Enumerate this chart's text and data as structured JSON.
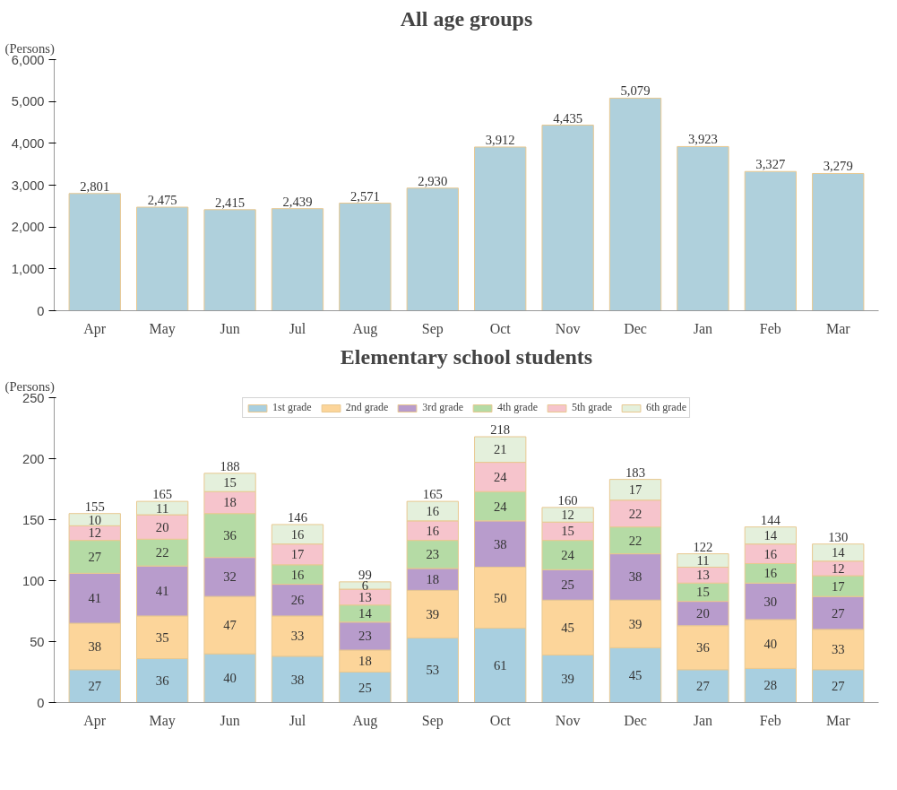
{
  "chart_data": [
    {
      "type": "bar",
      "title": "All age groups",
      "ylabel": "(Persons)",
      "categories": [
        "Apr",
        "May",
        "Jun",
        "Jul",
        "Aug",
        "Sep",
        "Oct",
        "Nov",
        "Dec",
        "Jan",
        "Feb",
        "Mar"
      ],
      "values": [
        2801,
        2475,
        2415,
        2439,
        2571,
        2930,
        3912,
        4435,
        5079,
        3923,
        3327,
        3279
      ],
      "color": "#afd0dc",
      "ylim": [
        0,
        6000
      ],
      "yticks": [
        {
          "value": 0,
          "label": "0"
        },
        {
          "value": 1000,
          "label": "1,000"
        },
        {
          "value": 2000,
          "label": "2,000"
        },
        {
          "value": 3000,
          "label": "3,000"
        },
        {
          "value": 4000,
          "label": "4,000"
        },
        {
          "value": 5000,
          "label": "5,000"
        },
        {
          "value": 6000,
          "label": "6,000"
        }
      ],
      "value_labels": [
        "2,801",
        "2,475",
        "2,415",
        "2,439",
        "2,571",
        "2,930",
        "3,912",
        "4,435",
        "5,079",
        "3,923",
        "3,327",
        "3,279"
      ],
      "grid": false,
      "legend": false
    },
    {
      "type": "bar",
      "title": "Elementary school students",
      "ylabel": "(Persons)",
      "categories": [
        "Apr",
        "May",
        "Jun",
        "Jul",
        "Aug",
        "Sep",
        "Oct",
        "Nov",
        "Dec",
        "Jan",
        "Feb",
        "Mar"
      ],
      "stacked": true,
      "series": [
        {
          "name": "1st grade",
          "color": "#a8cfe0",
          "values": [
            27,
            36,
            40,
            38,
            25,
            53,
            61,
            39,
            45,
            27,
            28,
            27
          ]
        },
        {
          "name": "2nd grade",
          "color": "#fcd59a",
          "values": [
            38,
            35,
            47,
            33,
            18,
            39,
            50,
            45,
            39,
            36,
            40,
            33
          ]
        },
        {
          "name": "3rd grade",
          "color": "#b89ccc",
          "values": [
            41,
            41,
            32,
            26,
            23,
            18,
            38,
            25,
            38,
            20,
            30,
            27
          ]
        },
        {
          "name": "4th grade",
          "color": "#b5dba5",
          "values": [
            27,
            22,
            36,
            16,
            14,
            23,
            24,
            24,
            22,
            15,
            16,
            17
          ]
        },
        {
          "name": "5th grade",
          "color": "#f6c4cc",
          "values": [
            12,
            20,
            18,
            17,
            13,
            16,
            24,
            15,
            22,
            13,
            16,
            12
          ]
        },
        {
          "name": "6th grade",
          "color": "#e4f0dc",
          "values": [
            10,
            11,
            15,
            16,
            6,
            16,
            21,
            12,
            17,
            11,
            14,
            14
          ]
        }
      ],
      "totals": [
        "155",
        "165",
        "188",
        "146",
        "99",
        "165",
        "218",
        "160",
        "183",
        "122",
        "144",
        "130"
      ],
      "ylim": [
        0,
        250
      ],
      "yticks": [
        0,
        50,
        100,
        150,
        200,
        250
      ],
      "data_labels": true,
      "grid": false,
      "legend": "top"
    }
  ]
}
